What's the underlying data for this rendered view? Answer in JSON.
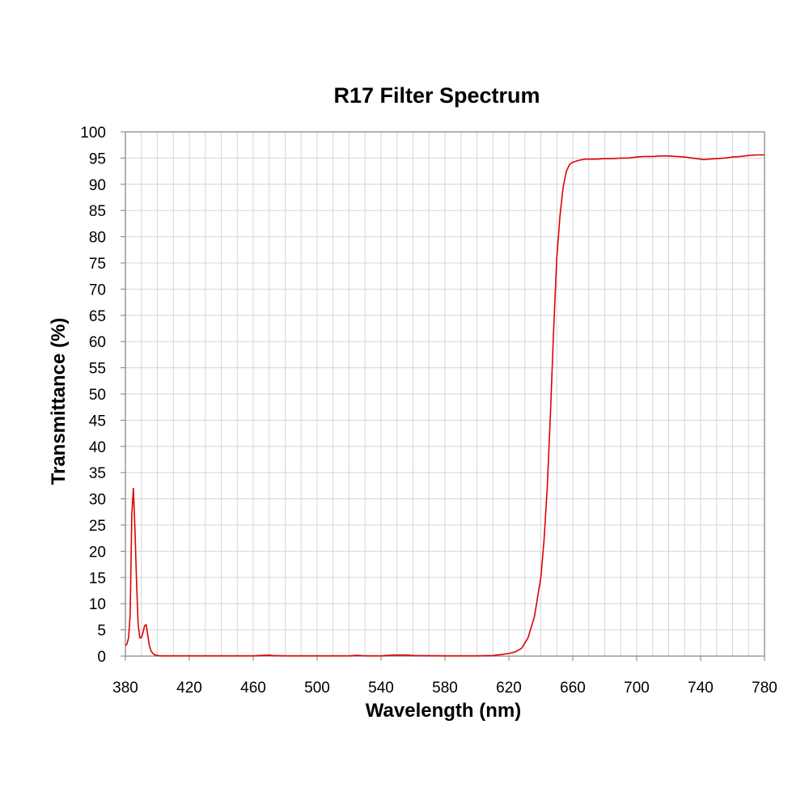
{
  "chart_data": {
    "type": "line",
    "title": "R17 Filter Spectrum",
    "xlabel": "Wavelength (nm)",
    "ylabel": "Transmittance (%)",
    "xlim": [
      380,
      780
    ],
    "ylim": [
      0,
      100
    ],
    "x_ticks": [
      380,
      420,
      460,
      500,
      540,
      580,
      620,
      660,
      700,
      740,
      780
    ],
    "y_ticks": [
      0,
      5,
      10,
      15,
      20,
      25,
      30,
      35,
      40,
      45,
      50,
      55,
      60,
      65,
      70,
      75,
      80,
      85,
      90,
      95,
      100
    ],
    "grid": true,
    "series": [
      {
        "color": "#e00000",
        "x": [
          380,
          381,
          382,
          383,
          384,
          385,
          386,
          387,
          388,
          389,
          390,
          391,
          392,
          393,
          394,
          395,
          396,
          397,
          398,
          399,
          400,
          402,
          404,
          406,
          410,
          420,
          440,
          460,
          470,
          472,
          480,
          500,
          520,
          525,
          530,
          540,
          548,
          552,
          556,
          560,
          580,
          600,
          610,
          615,
          620,
          624,
          628,
          632,
          636,
          640,
          642,
          644,
          646,
          648,
          650,
          652,
          654,
          656,
          658,
          660,
          662,
          664,
          666,
          668,
          670,
          675,
          680,
          685,
          690,
          695,
          700,
          705,
          710,
          715,
          720,
          725,
          730,
          735,
          740,
          742,
          745,
          750,
          755,
          760,
          765,
          770,
          775,
          780
        ],
        "y": [
          2.0,
          2.3,
          3.5,
          8.0,
          27.0,
          32.0,
          24.0,
          14.0,
          6.0,
          3.5,
          3.5,
          4.5,
          5.8,
          6.0,
          4.0,
          2.0,
          1.0,
          0.6,
          0.3,
          0.2,
          0.1,
          0.05,
          0.05,
          0.05,
          0.05,
          0.05,
          0.05,
          0.05,
          0.2,
          0.1,
          0.05,
          0.05,
          0.05,
          0.15,
          0.05,
          0.05,
          0.2,
          0.2,
          0.2,
          0.1,
          0.05,
          0.05,
          0.1,
          0.3,
          0.5,
          0.8,
          1.5,
          3.5,
          7.5,
          15.0,
          22.0,
          32.0,
          46.0,
          62.0,
          76.0,
          84.0,
          89.5,
          92.5,
          93.8,
          94.2,
          94.4,
          94.6,
          94.7,
          94.8,
          94.8,
          94.8,
          94.9,
          94.9,
          95.0,
          95.0,
          95.2,
          95.3,
          95.3,
          95.4,
          95.4,
          95.3,
          95.2,
          95.0,
          94.8,
          94.7,
          94.8,
          94.9,
          95.0,
          95.2,
          95.3,
          95.5,
          95.6,
          95.6
        ]
      }
    ]
  }
}
